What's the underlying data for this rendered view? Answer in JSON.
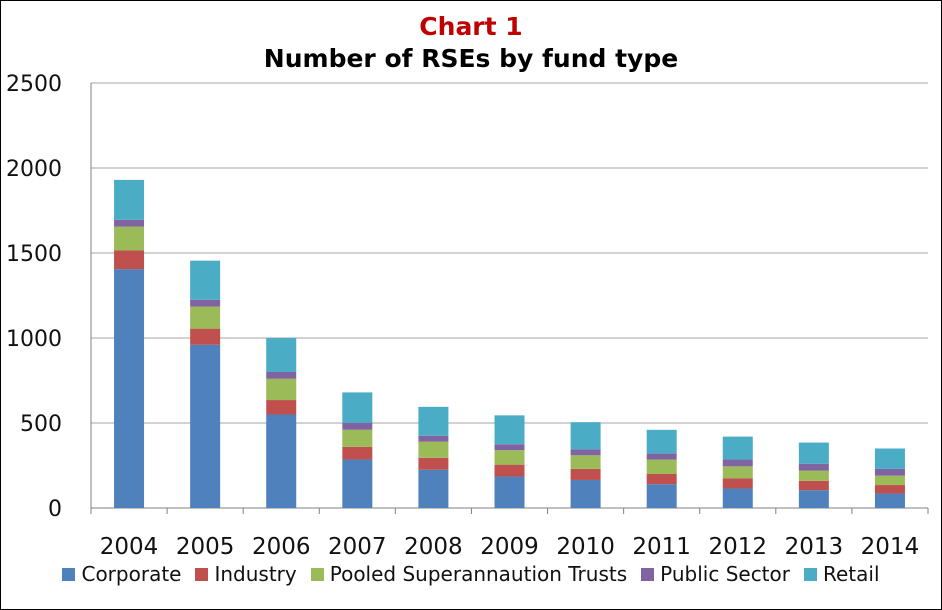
{
  "chart_data": {
    "type": "bar",
    "stacked": true,
    "title": "Chart 1",
    "subtitle": "Number of RSEs by fund type",
    "xlabel": "",
    "ylabel": "",
    "ylim": [
      0,
      2500
    ],
    "yticks": [
      0,
      500,
      1000,
      1500,
      2000,
      2500
    ],
    "grid": true,
    "legend": "bottom",
    "categories": [
      "2004",
      "2005",
      "2006",
      "2007",
      "2008",
      "2009",
      "2010",
      "2011",
      "2012",
      "2013",
      "2014"
    ],
    "series": [
      {
        "name": "Corporate",
        "color": "#4f81bd",
        "values": [
          1405,
          960,
          550,
          285,
          225,
          185,
          165,
          140,
          115,
          105,
          85
        ]
      },
      {
        "name": "Industry",
        "color": "#c0504d",
        "values": [
          110,
          95,
          85,
          75,
          70,
          70,
          65,
          60,
          60,
          55,
          50
        ]
      },
      {
        "name": "Pooled Superannaution Trusts",
        "color": "#9bbb59",
        "values": [
          140,
          130,
          125,
          100,
          95,
          85,
          80,
          85,
          70,
          60,
          55
        ]
      },
      {
        "name": "Public Sector",
        "color": "#8064a2",
        "values": [
          40,
          40,
          40,
          40,
          35,
          35,
          35,
          35,
          40,
          40,
          40
        ]
      },
      {
        "name": "Retail",
        "color": "#4bacc6",
        "values": [
          235,
          230,
          200,
          180,
          170,
          170,
          160,
          140,
          135,
          125,
          120
        ]
      }
    ]
  }
}
